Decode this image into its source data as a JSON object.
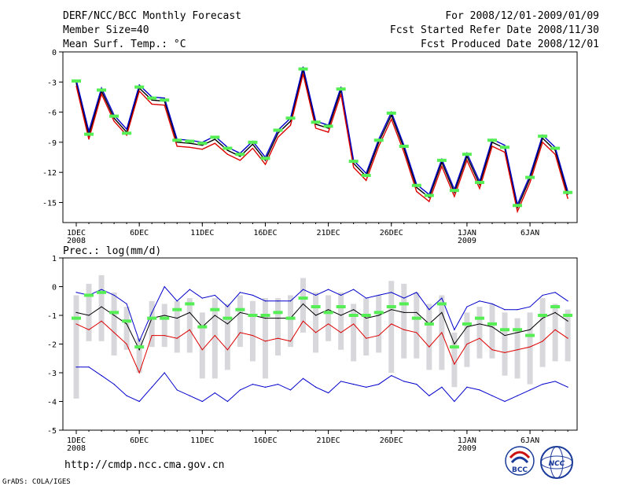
{
  "header": {
    "title": "DERF/NCC/BCC Monthly Forecast",
    "member_size": "Member Size=40",
    "variable": "Mean Surf. Temp.: °C",
    "period": "For 2008/12/01-2009/01/09",
    "fcst_started": "Fcst Started Refer Date 2008/11/30",
    "fcst_produced": "Fcst Produced Date 2008/12/01"
  },
  "footer": {
    "url": "http://cmdp.ncc.cma.gov.cn",
    "credit": "GrADS: COLA/IGES",
    "logo_left": "BCC",
    "logo_right": "NCC"
  },
  "colors": {
    "ensemble_mean": "#000000",
    "upper_spread": "#0000cc",
    "lower_spread": "#dd0000",
    "observed_marker": "#55ee55",
    "box": "#d8d8dc"
  },
  "chart_data": [
    {
      "type": "line",
      "title": "Mean Surf. Temp.: °C",
      "xlabel": "",
      "ylabel": "°C",
      "ylim": [
        -17,
        0
      ],
      "yticks": [
        0,
        -3,
        -6,
        -9,
        -12,
        -15
      ],
      "xticks": [
        {
          "day": 1,
          "label": "1DEC",
          "sub": "2008"
        },
        {
          "day": 6,
          "label": "6DEC",
          "sub": ""
        },
        {
          "day": 11,
          "label": "11DEC",
          "sub": ""
        },
        {
          "day": 16,
          "label": "16DEC",
          "sub": ""
        },
        {
          "day": 21,
          "label": "21DEC",
          "sub": ""
        },
        {
          "day": 26,
          "label": "26DEC",
          "sub": ""
        },
        {
          "day": 32,
          "label": "1JAN",
          "sub": "2009"
        },
        {
          "day": 37,
          "label": "6JAN",
          "sub": ""
        }
      ],
      "x": [
        1,
        2,
        3,
        4,
        5,
        6,
        7,
        8,
        9,
        10,
        11,
        12,
        13,
        14,
        15,
        16,
        17,
        18,
        19,
        20,
        21,
        22,
        23,
        24,
        25,
        26,
        27,
        28,
        29,
        30,
        31,
        32,
        33,
        34,
        35,
        36,
        37,
        38,
        39,
        40
      ],
      "series": [
        {
          "name": "ensemble-mean",
          "values": [
            -3.1,
            -8.3,
            -3.9,
            -6.6,
            -8.0,
            -3.6,
            -4.8,
            -4.9,
            -9.0,
            -9.1,
            -9.3,
            -8.7,
            -9.8,
            -10.4,
            -9.2,
            -10.8,
            -8.1,
            -6.9,
            -1.8,
            -7.2,
            -7.6,
            -3.8,
            -11.1,
            -12.4,
            -9.0,
            -6.3,
            -9.6,
            -13.5,
            -14.5,
            -11.0,
            -14.0,
            -10.4,
            -13.2,
            -9.0,
            -9.6,
            -15.5,
            -12.6,
            -8.6,
            -9.8,
            -14.2
          ]
        },
        {
          "name": "upper",
          "values": [
            -2.8,
            -7.9,
            -3.6,
            -6.3,
            -7.7,
            -3.3,
            -4.5,
            -4.6,
            -8.7,
            -8.8,
            -9.0,
            -8.4,
            -9.5,
            -10.1,
            -8.9,
            -10.5,
            -7.8,
            -6.6,
            -1.5,
            -6.9,
            -7.3,
            -3.5,
            -10.8,
            -12.1,
            -8.7,
            -6.0,
            -9.3,
            -13.2,
            -14.2,
            -10.7,
            -13.7,
            -10.1,
            -12.9,
            -8.7,
            -9.3,
            -15.2,
            -12.3,
            -8.3,
            -9.5,
            -13.9
          ]
        },
        {
          "name": "lower",
          "values": [
            -3.4,
            -8.7,
            -4.2,
            -6.9,
            -8.3,
            -3.9,
            -5.2,
            -5.3,
            -9.4,
            -9.5,
            -9.7,
            -9.1,
            -10.2,
            -10.8,
            -9.6,
            -11.2,
            -8.5,
            -7.3,
            -2.2,
            -7.6,
            -8.0,
            -4.2,
            -11.5,
            -12.8,
            -9.4,
            -6.7,
            -10.0,
            -13.9,
            -14.9,
            -11.4,
            -14.4,
            -10.8,
            -13.6,
            -9.4,
            -10.0,
            -15.9,
            -13.0,
            -9.0,
            -10.2,
            -14.6
          ]
        },
        {
          "name": "observed",
          "values": [
            -2.9,
            -8.2,
            -3.8,
            -6.4,
            -8.1,
            -3.5,
            -4.6,
            -4.8,
            -8.8,
            -8.9,
            -9.1,
            -8.5,
            -9.6,
            -10.2,
            -9.0,
            -10.6,
            -7.8,
            -6.6,
            -1.7,
            -7.0,
            -7.4,
            -3.7,
            -10.9,
            -12.3,
            -8.8,
            -6.1,
            -9.4,
            -13.3,
            -14.3,
            -10.8,
            -13.8,
            -10.2,
            -13.0,
            -8.8,
            -9.5,
            -15.3,
            -12.5,
            -8.4,
            -9.6,
            -14.0
          ]
        }
      ]
    },
    {
      "type": "line",
      "title": "Prec.: log(mm/d)",
      "xlabel": "",
      "ylabel": "log(mm/d)",
      "ylim": [
        -5,
        1
      ],
      "yticks": [
        1,
        0,
        -1,
        -2,
        -3,
        -4,
        -5
      ],
      "xticks": [
        {
          "day": 1,
          "label": "1DEC",
          "sub": "2008"
        },
        {
          "day": 6,
          "label": "6DEC",
          "sub": ""
        },
        {
          "day": 11,
          "label": "11DEC",
          "sub": ""
        },
        {
          "day": 16,
          "label": "16DEC",
          "sub": ""
        },
        {
          "day": 21,
          "label": "21DEC",
          "sub": ""
        },
        {
          "day": 26,
          "label": "26DEC",
          "sub": ""
        },
        {
          "day": 32,
          "label": "1JAN",
          "sub": "2009"
        },
        {
          "day": 37,
          "label": "6JAN",
          "sub": ""
        }
      ],
      "x": [
        1,
        2,
        3,
        4,
        5,
        6,
        7,
        8,
        9,
        10,
        11,
        12,
        13,
        14,
        15,
        16,
        17,
        18,
        19,
        20,
        21,
        22,
        23,
        24,
        25,
        26,
        27,
        28,
        29,
        30,
        31,
        32,
        33,
        34,
        35,
        36,
        37,
        38,
        39,
        40
      ],
      "box_top": [
        -0.3,
        0.1,
        0.4,
        -0.2,
        -0.7,
        -1.8,
        -0.5,
        -0.6,
        -0.5,
        -0.4,
        -0.9,
        -0.4,
        -0.6,
        -0.3,
        -0.5,
        -0.4,
        -0.4,
        -0.3,
        0.3,
        -0.2,
        -0.3,
        -0.2,
        -0.6,
        -0.4,
        -0.3,
        0.2,
        0.1,
        -0.2,
        -0.6,
        -0.3,
        -1.6,
        -0.9,
        -0.7,
        -0.6,
        -0.9,
        -1.1,
        -0.9,
        -0.4,
        -0.6,
        -0.8
      ],
      "box_bottom": [
        -3.9,
        -1.9,
        -1.9,
        -2.4,
        -2.2,
        -3.0,
        -2.1,
        -2.1,
        -2.3,
        -2.3,
        -3.2,
        -3.2,
        -2.9,
        -2.1,
        -2.6,
        -3.2,
        -2.4,
        -2.1,
        -1.6,
        -2.3,
        -1.9,
        -2.2,
        -2.6,
        -2.4,
        -2.3,
        -3.0,
        -2.5,
        -2.5,
        -2.9,
        -2.9,
        -3.5,
        -2.8,
        -2.5,
        -2.5,
        -3.1,
        -3.2,
        -3.4,
        -2.8,
        -2.6,
        -2.6
      ],
      "series": [
        {
          "name": "upper",
          "values": [
            -0.2,
            -0.3,
            -0.1,
            -0.3,
            -0.6,
            -1.9,
            -0.9,
            0.0,
            -0.5,
            -0.1,
            -0.4,
            -0.3,
            -0.7,
            -0.2,
            -0.3,
            -0.5,
            -0.5,
            -0.5,
            -0.1,
            -0.3,
            -0.1,
            -0.3,
            -0.1,
            -0.4,
            -0.3,
            -0.2,
            -0.4,
            -0.2,
            -0.8,
            -0.4,
            -1.5,
            -0.7,
            -0.5,
            -0.6,
            -0.8,
            -0.8,
            -0.7,
            -0.3,
            -0.2,
            -0.5
          ]
        },
        {
          "name": "ensemble-mean",
          "values": [
            -0.9,
            -1.0,
            -0.7,
            -1.0,
            -1.3,
            -2.2,
            -1.1,
            -1.0,
            -1.1,
            -0.9,
            -1.4,
            -1.0,
            -1.3,
            -0.9,
            -1.0,
            -1.1,
            -1.1,
            -1.1,
            -0.6,
            -1.0,
            -0.8,
            -1.0,
            -0.8,
            -1.1,
            -1.0,
            -0.8,
            -0.9,
            -0.9,
            -1.3,
            -0.9,
            -2.0,
            -1.4,
            -1.3,
            -1.4,
            -1.7,
            -1.6,
            -1.5,
            -1.1,
            -0.9,
            -1.2
          ]
        },
        {
          "name": "lower",
          "values": [
            -1.3,
            -1.5,
            -1.2,
            -1.6,
            -2.0,
            -3.0,
            -1.7,
            -1.7,
            -1.8,
            -1.5,
            -2.2,
            -1.7,
            -2.2,
            -1.6,
            -1.7,
            -1.9,
            -1.8,
            -1.9,
            -1.2,
            -1.6,
            -1.3,
            -1.6,
            -1.3,
            -1.8,
            -1.7,
            -1.3,
            -1.5,
            -1.6,
            -2.1,
            -1.6,
            -2.7,
            -2.0,
            -1.8,
            -2.2,
            -2.3,
            -2.2,
            -2.1,
            -1.9,
            -1.5,
            -1.8
          ]
        },
        {
          "name": "lowest",
          "values": [
            -2.8,
            -2.8,
            -3.1,
            -3.4,
            -3.8,
            -4.0,
            -3.5,
            -3.0,
            -3.6,
            -3.8,
            -4.0,
            -3.7,
            -4.0,
            -3.6,
            -3.4,
            -3.5,
            -3.4,
            -3.6,
            -3.2,
            -3.5,
            -3.7,
            -3.3,
            -3.4,
            -3.5,
            -3.4,
            -3.1,
            -3.3,
            -3.4,
            -3.8,
            -3.5,
            -4.0,
            -3.5,
            -3.6,
            -3.8,
            -4.0,
            -3.8,
            -3.6,
            -3.4,
            -3.3,
            -3.5
          ]
        },
        {
          "name": "observed",
          "values": [
            -1.1,
            -0.3,
            -0.2,
            -0.9,
            -1.2,
            -2.1,
            -1.1,
            -1.1,
            -0.8,
            -0.6,
            -1.4,
            -0.8,
            -1.1,
            -0.8,
            -1.0,
            -1.0,
            -0.9,
            -1.1,
            -0.4,
            -0.7,
            -0.9,
            -0.7,
            -1.0,
            -1.0,
            -0.9,
            -0.7,
            -0.6,
            -1.1,
            -1.3,
            -0.6,
            -2.1,
            -1.3,
            -1.1,
            -1.3,
            -1.5,
            -1.5,
            -1.7,
            -1.0,
            -0.7,
            -1.0
          ]
        }
      ]
    }
  ]
}
